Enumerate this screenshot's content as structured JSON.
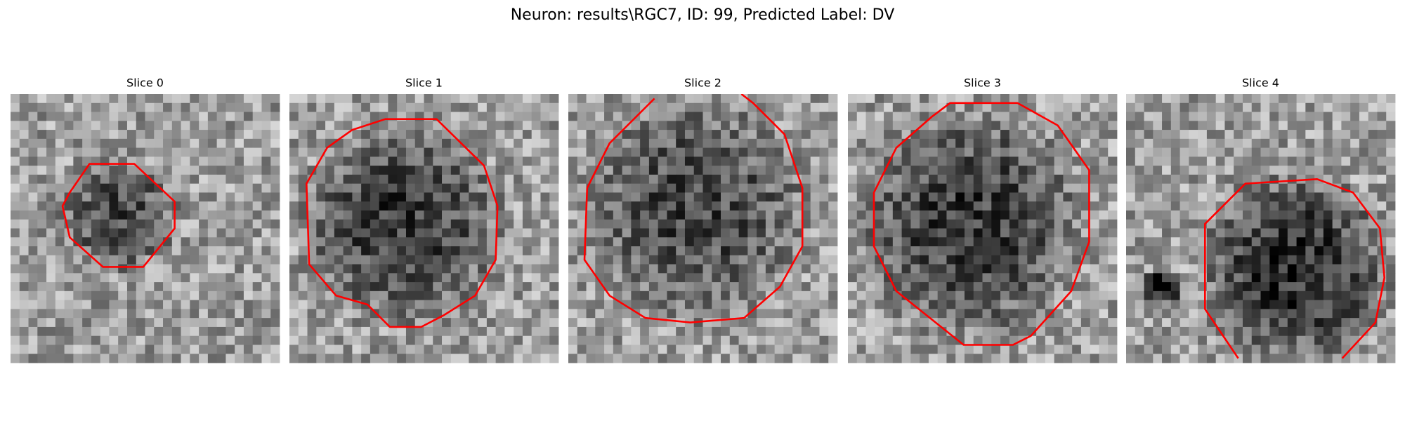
{
  "title": "Neuron: results\\RGC7, ID: 99, Predicted Label: DV",
  "panels": [
    {
      "title": "Slice 0"
    },
    {
      "title": "Slice 1"
    },
    {
      "title": "Slice 2"
    },
    {
      "title": "Slice 3"
    },
    {
      "title": "Slice 4"
    }
  ]
}
